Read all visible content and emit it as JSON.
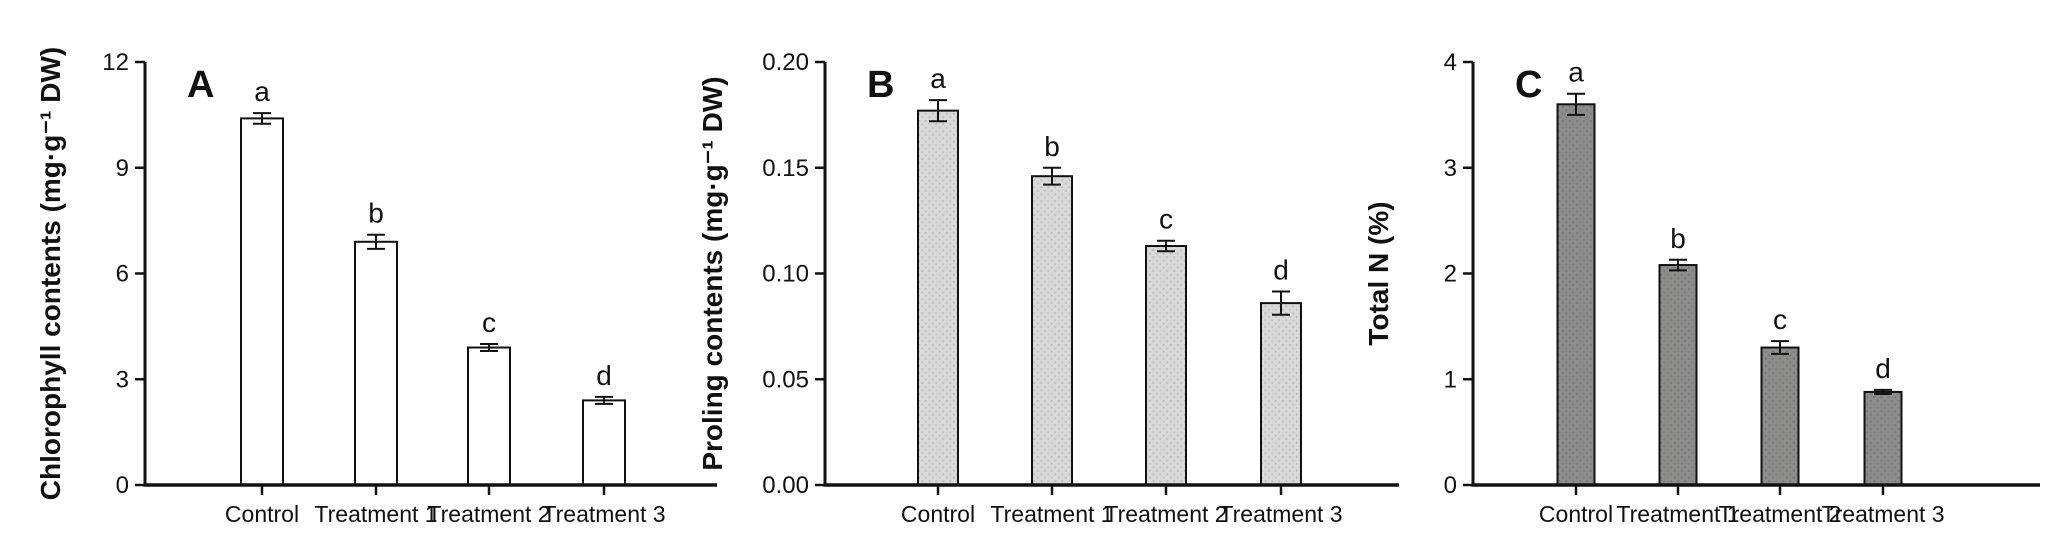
{
  "figure": {
    "background": "#ffffff",
    "axis_color": "#111111",
    "description_panels": [
      "A",
      "B",
      "C"
    ]
  },
  "chart_data": [
    {
      "type": "bar",
      "panel_label": "A",
      "title": "",
      "xlabel": "",
      "ylabel": "Chlorophyll contents (mg·g⁻¹ DW)",
      "categories": [
        "Control",
        "Treatment 1",
        "Treatment 2",
        "Treatment 3"
      ],
      "values": [
        10.4,
        6.9,
        3.9,
        2.4
      ],
      "errors": [
        0.15,
        0.2,
        0.1,
        0.1
      ],
      "sig_letters": [
        "a",
        "b",
        "c",
        "d"
      ],
      "ylim": [
        0,
        12
      ],
      "yticks": [
        0,
        3,
        6,
        9,
        12
      ],
      "ytick_labels": [
        "0",
        "3",
        "6",
        "9",
        "12"
      ],
      "bar_fill": "#ffffff",
      "bar_dot_color": null,
      "bar_border": "#111111",
      "grid": false,
      "legend": "none"
    },
    {
      "type": "bar",
      "panel_label": "B",
      "title": "",
      "xlabel": "",
      "ylabel": "Proling contents (mg·g⁻¹ DW)",
      "categories": [
        "Control",
        "Treatment 1",
        "Treatment 2",
        "Treatment 3"
      ],
      "values": [
        0.177,
        0.146,
        0.113,
        0.086
      ],
      "errors": [
        0.005,
        0.004,
        0.0025,
        0.0055
      ],
      "sig_letters": [
        "a",
        "b",
        "c",
        "d"
      ],
      "ylim": [
        0,
        0.2
      ],
      "yticks": [
        0,
        0.05,
        0.1,
        0.15,
        0.2
      ],
      "ytick_labels": [
        "0.00",
        "0.05",
        "0.10",
        "0.15",
        "0.20"
      ],
      "bar_fill": "#d9d9d9",
      "bar_dot_color": "#bcbcbc",
      "bar_border": "#111111",
      "grid": false,
      "legend": "none"
    },
    {
      "type": "bar",
      "panel_label": "C",
      "title": "",
      "xlabel": "",
      "ylabel": "Total N (%)",
      "categories": [
        "Control",
        "Treatment 1",
        "Treatment 2",
        "Treatment 3"
      ],
      "values": [
        3.6,
        2.08,
        1.3,
        0.88
      ],
      "errors": [
        0.1,
        0.05,
        0.06,
        0.02
      ],
      "sig_letters": [
        "a",
        "b",
        "c",
        "d"
      ],
      "ylim": [
        0,
        4
      ],
      "yticks": [
        0,
        1,
        2,
        3,
        4
      ],
      "ytick_labels": [
        "0",
        "1",
        "2",
        "3",
        "4"
      ],
      "bar_fill": "#8c8c8c",
      "bar_dot_color": "#767b74",
      "bar_border": "#111111",
      "grid": false,
      "legend": "none"
    }
  ]
}
